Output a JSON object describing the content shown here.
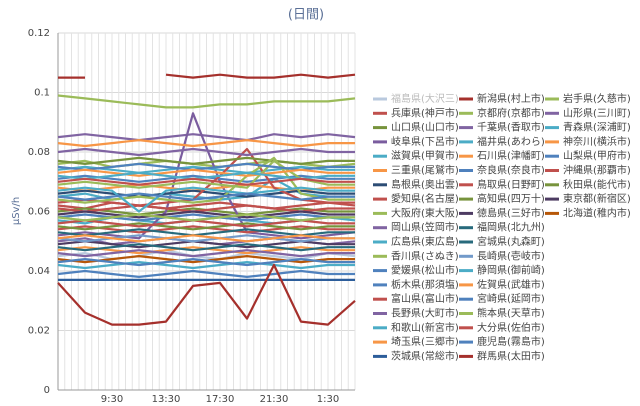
{
  "chart_data": {
    "type": "line",
    "title": "(日間)",
    "y_label": "μSv/h",
    "categories": [
      null,
      null,
      "9:30",
      null,
      "13:30",
      null,
      "17:30",
      null,
      "21:30",
      null,
      "1:30",
      null
    ],
    "ylim": [
      0,
      0.12
    ],
    "yticks": [
      0,
      0.02,
      0.04,
      0.06,
      0.08,
      0.1,
      0.12
    ],
    "grid": true,
    "legend": "right",
    "series": [
      {
        "name": "福島県(大沢三)",
        "color": "#b9c9de",
        "values": [
          0.045,
          0.046,
          0.044,
          0.045,
          0.047,
          0.045,
          0.044,
          0.046,
          0.045,
          0.044,
          0.046,
          0.045
        ]
      },
      {
        "name": "新潟県(村上市)",
        "color": "#a5302c",
        "values": [
          0.105,
          0.105,
          null,
          null,
          0.106,
          0.105,
          0.106,
          0.105,
          0.105,
          0.106,
          0.105,
          0.106
        ]
      },
      {
        "name": "岩手県(久慈市)",
        "color": "#9bbb59",
        "values": [
          0.099,
          0.098,
          0.097,
          0.096,
          0.095,
          0.095,
          0.096,
          0.096,
          0.097,
          0.097,
          0.097,
          0.098
        ]
      },
      {
        "name": "兵庫県(神戸市)",
        "color": "#c0504d",
        "values": [
          0.062,
          0.061,
          0.063,
          0.062,
          0.061,
          0.062,
          0.063,
          0.062,
          0.061,
          0.062,
          0.063,
          0.062
        ]
      },
      {
        "name": "京都府(京都市)",
        "color": "#9bbb59",
        "values": [
          0.076,
          0.077,
          0.075,
          0.076,
          0.077,
          0.076,
          0.075,
          0.076,
          0.077,
          0.076,
          0.075,
          0.076
        ]
      },
      {
        "name": "山形県(三川町)",
        "color": "#8064a2",
        "values": [
          0.05,
          0.051,
          0.049,
          0.05,
          0.051,
          0.05,
          0.049,
          0.05,
          0.051,
          0.05,
          0.049,
          0.05
        ]
      },
      {
        "name": "山口県(山口市)",
        "color": "#77933c",
        "values": [
          0.06,
          0.061,
          0.06,
          0.059,
          0.06,
          0.061,
          0.06,
          0.059,
          0.06,
          0.061,
          0.06,
          0.06
        ]
      },
      {
        "name": "千葉県(香取市)",
        "color": "#8064a2",
        "values": [
          0.085,
          0.086,
          0.085,
          0.084,
          0.085,
          0.086,
          0.085,
          0.084,
          0.086,
          0.085,
          0.086,
          0.085
        ]
      },
      {
        "name": "青森県(深浦町)",
        "color": "#4bacc6",
        "values": [
          0.057,
          0.056,
          0.058,
          0.057,
          0.056,
          0.057,
          0.058,
          0.057,
          0.056,
          0.057,
          0.058,
          0.057
        ]
      },
      {
        "name": "岐阜県(下呂市)",
        "color": "#7a5c9e",
        "values": [
          0.052,
          0.053,
          0.052,
          0.051,
          0.06,
          0.093,
          0.07,
          0.053,
          0.052,
          0.051,
          0.052,
          0.053
        ]
      },
      {
        "name": "福井県(あわら)",
        "color": "#4bacc6",
        "values": [
          0.074,
          0.075,
          0.074,
          0.073,
          0.074,
          0.075,
          0.074,
          0.073,
          0.074,
          0.075,
          0.074,
          0.074
        ]
      },
      {
        "name": "神奈川(横浜市)",
        "color": "#f79646",
        "values": [
          0.047,
          0.048,
          0.047,
          0.046,
          0.047,
          0.048,
          0.047,
          0.046,
          0.047,
          0.048,
          0.047,
          0.047
        ]
      },
      {
        "name": "滋賀県(甲賀市)",
        "color": "#4bacc6",
        "values": [
          0.065,
          0.066,
          0.064,
          0.065,
          0.066,
          0.065,
          0.064,
          0.065,
          0.071,
          0.066,
          0.065,
          0.065
        ]
      },
      {
        "name": "石川県(津幡町)",
        "color": "#f79646",
        "values": [
          0.083,
          0.082,
          0.083,
          0.084,
          0.083,
          0.082,
          0.083,
          0.084,
          0.083,
          0.082,
          0.083,
          0.083
        ]
      },
      {
        "name": "山梨県(甲府市)",
        "color": "#4f81bd",
        "values": [
          0.058,
          0.059,
          0.058,
          0.057,
          0.058,
          0.059,
          0.058,
          0.057,
          0.058,
          0.059,
          0.058,
          0.058
        ]
      },
      {
        "name": "三重県(尾鷲市)",
        "color": "#f79646",
        "values": [
          0.068,
          0.067,
          0.068,
          0.069,
          0.068,
          0.067,
          0.068,
          0.069,
          0.068,
          0.067,
          0.068,
          0.068
        ]
      },
      {
        "name": "奈良県(奈良市)",
        "color": "#4f81bd",
        "values": [
          0.071,
          0.072,
          0.071,
          0.07,
          0.071,
          0.072,
          0.071,
          0.07,
          0.071,
          0.072,
          0.071,
          0.071
        ]
      },
      {
        "name": "沖縄県(那覇市)",
        "color": "#c0504d",
        "values": [
          0.061,
          0.06,
          0.061,
          0.062,
          0.061,
          0.06,
          0.061,
          0.062,
          0.061,
          0.06,
          0.061,
          0.061
        ]
      },
      {
        "name": "島根県(奥出雲)",
        "color": "#2c4d75",
        "values": [
          0.066,
          0.067,
          0.066,
          0.065,
          0.066,
          0.067,
          0.066,
          0.065,
          0.066,
          0.067,
          0.066,
          0.066
        ]
      },
      {
        "name": "鳥取県(日野町)",
        "color": "#c0504d",
        "values": [
          0.063,
          0.064,
          0.063,
          0.062,
          0.063,
          0.064,
          0.072,
          0.081,
          0.068,
          0.064,
          0.063,
          0.063
        ]
      },
      {
        "name": "秋田県(能代市)",
        "color": "#77933c",
        "values": [
          0.077,
          0.076,
          0.077,
          0.078,
          0.077,
          0.076,
          0.077,
          0.078,
          0.077,
          0.076,
          0.077,
          0.077
        ]
      },
      {
        "name": "愛知県(名古屋)",
        "color": "#c0504d",
        "values": [
          0.054,
          0.055,
          0.054,
          0.053,
          0.054,
          0.055,
          0.054,
          0.053,
          0.054,
          0.055,
          0.054,
          0.054
        ]
      },
      {
        "name": "高知県(四万十)",
        "color": "#77933c",
        "values": [
          0.055,
          0.054,
          0.055,
          0.056,
          0.055,
          0.054,
          0.055,
          0.056,
          0.055,
          0.054,
          0.055,
          0.055
        ]
      },
      {
        "name": "東京都(新宿区)",
        "color": "#4d3b62",
        "values": [
          0.059,
          0.06,
          0.059,
          0.058,
          0.059,
          0.06,
          0.059,
          0.058,
          0.059,
          0.06,
          0.059,
          0.059
        ]
      },
      {
        "name": "大阪府(東大阪)",
        "color": "#9bbb59",
        "values": [
          0.064,
          0.063,
          0.064,
          0.065,
          0.064,
          0.063,
          0.064,
          0.072,
          0.078,
          0.066,
          0.064,
          0.064
        ]
      },
      {
        "name": "徳島県(三好市)",
        "color": "#4d3b62",
        "values": [
          0.049,
          0.05,
          0.049,
          0.048,
          0.049,
          0.05,
          0.049,
          0.048,
          0.049,
          0.05,
          0.049,
          0.049
        ]
      },
      {
        "name": "北海道(稚内市)",
        "color": "#b65708",
        "values": [
          0.044,
          0.043,
          0.044,
          0.045,
          0.044,
          0.043,
          0.044,
          0.045,
          0.044,
          0.043,
          0.044,
          0.044
        ]
      },
      {
        "name": "岡山県(笠岡市)",
        "color": "#8064a2",
        "values": [
          0.08,
          0.081,
          0.08,
          0.079,
          0.08,
          0.081,
          0.08,
          0.079,
          0.08,
          0.081,
          0.08,
          0.08
        ]
      },
      {
        "name": "福岡県(北九州)",
        "color": "#276a7c",
        "values": [
          0.053,
          0.052,
          0.053,
          0.054,
          0.053,
          0.052,
          0.053,
          0.054,
          0.053,
          0.052,
          0.053,
          0.053
        ]
      },
      {
        "name": "広島県(東広島)",
        "color": "#4bacc6",
        "values": [
          0.067,
          0.068,
          0.067,
          0.06,
          0.067,
          0.068,
          0.067,
          0.066,
          0.067,
          0.068,
          0.067,
          0.067
        ]
      },
      {
        "name": "宮城県(丸森町)",
        "color": "#276a7c",
        "values": [
          0.048,
          0.047,
          0.048,
          0.049,
          0.048,
          0.047,
          0.048,
          0.049,
          0.048,
          0.047,
          0.048,
          0.048
        ]
      },
      {
        "name": "香川県(さぬき)",
        "color": "#9bbb59",
        "values": [
          0.069,
          0.07,
          0.069,
          0.068,
          0.069,
          0.07,
          0.069,
          0.068,
          0.077,
          0.071,
          0.069,
          0.069
        ]
      },
      {
        "name": "長崎県(壱岐市)",
        "color": "#729aca",
        "values": [
          0.051,
          0.05,
          0.051,
          0.052,
          0.051,
          0.05,
          0.051,
          0.052,
          0.051,
          0.05,
          0.051,
          0.051
        ]
      },
      {
        "name": "愛媛県(松山市)",
        "color": "#4f81bd",
        "values": [
          0.075,
          0.074,
          0.075,
          0.076,
          0.075,
          0.074,
          0.075,
          0.076,
          0.075,
          0.074,
          0.075,
          0.075
        ]
      },
      {
        "name": "静岡県(御前崎)",
        "color": "#4bacc6",
        "values": [
          0.042,
          0.041,
          0.042,
          0.043,
          0.042,
          0.041,
          0.042,
          0.043,
          0.042,
          0.041,
          0.042,
          0.042
        ]
      },
      {
        "name": "栃木県(那須塩)",
        "color": "#4f81bd",
        "values": [
          0.065,
          0.064,
          0.065,
          0.066,
          0.065,
          0.064,
          0.065,
          0.066,
          0.065,
          0.064,
          0.065,
          0.065
        ]
      },
      {
        "name": "佐賀県(武雄市)",
        "color": "#f79646",
        "values": [
          0.073,
          0.074,
          0.073,
          0.072,
          0.073,
          0.074,
          0.073,
          0.072,
          0.073,
          0.074,
          0.073,
          0.073
        ]
      },
      {
        "name": "富山県(富山市)",
        "color": "#c0504d",
        "values": [
          0.056,
          0.057,
          0.056,
          0.055,
          0.056,
          0.057,
          0.056,
          0.055,
          0.056,
          0.057,
          0.056,
          0.056
        ]
      },
      {
        "name": "宮崎県(延岡市)",
        "color": "#4f81bd",
        "values": [
          0.039,
          0.04,
          0.039,
          0.038,
          0.039,
          0.04,
          0.039,
          0.038,
          0.039,
          0.04,
          0.039,
          0.039
        ]
      },
      {
        "name": "長野県(大町市)",
        "color": "#8064a2",
        "values": [
          0.046,
          0.045,
          0.046,
          0.047,
          0.046,
          0.045,
          0.046,
          0.047,
          0.046,
          0.045,
          0.046,
          0.046
        ]
      },
      {
        "name": "熊本県(天草市)",
        "color": "#9bbb59",
        "values": [
          0.058,
          0.057,
          0.058,
          0.059,
          0.058,
          0.057,
          0.058,
          0.059,
          0.058,
          0.057,
          0.058,
          0.058
        ]
      },
      {
        "name": "和歌山(新宮市)",
        "color": "#4bacc6",
        "values": [
          0.072,
          0.071,
          0.072,
          0.073,
          0.072,
          0.071,
          0.072,
          0.073,
          0.072,
          0.071,
          0.072,
          0.072
        ]
      },
      {
        "name": "大分県(佐伯市)",
        "color": "#c0504d",
        "values": [
          0.07,
          0.071,
          0.07,
          0.069,
          0.07,
          0.071,
          0.07,
          0.069,
          0.07,
          0.071,
          0.07,
          0.07
        ]
      },
      {
        "name": "埼玉県(三郷市)",
        "color": "#f79646",
        "values": [
          0.051,
          0.052,
          0.051,
          0.05,
          0.051,
          0.052,
          0.051,
          0.05,
          0.051,
          0.052,
          0.051,
          0.051
        ]
      },
      {
        "name": "鹿児島(霧島市)",
        "color": "#4f81bd",
        "values": [
          0.043,
          0.044,
          0.043,
          0.042,
          0.043,
          0.044,
          0.043,
          0.042,
          0.043,
          0.044,
          0.043,
          0.043
        ]
      },
      {
        "name": "茨城県(常総市)",
        "color": "#2c5d9a",
        "values": [
          0.037,
          0.037,
          0.037,
          0.037,
          0.037,
          0.037,
          0.037,
          0.037,
          0.037,
          0.037,
          0.037,
          0.037
        ]
      },
      {
        "name": "群馬県(太田市)",
        "color": "#a5302c",
        "values": [
          0.036,
          0.026,
          0.022,
          0.022,
          0.023,
          0.035,
          0.036,
          0.024,
          0.042,
          0.023,
          0.022,
          0.03
        ]
      }
    ]
  }
}
